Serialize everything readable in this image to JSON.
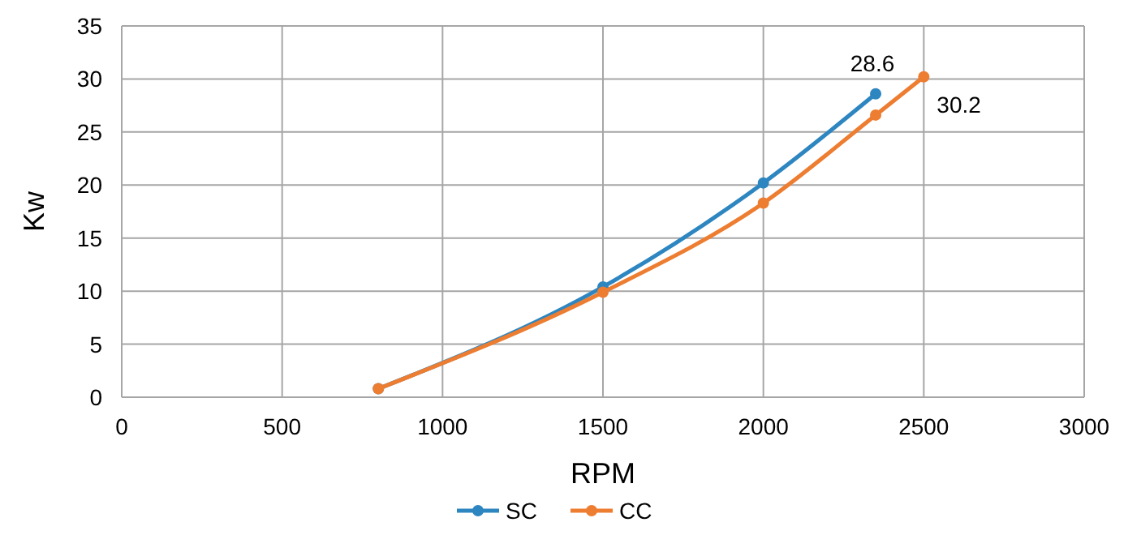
{
  "chart_data": {
    "type": "line",
    "xlabel": "RPM",
    "ylabel": "Kw",
    "x": [
      800,
      1500,
      2000,
      2350
    ],
    "series": [
      {
        "name": "SC",
        "color": "#2e86c1",
        "values": [
          0.8,
          10.4,
          20.2,
          28.6
        ]
      },
      {
        "name": "CC",
        "color": "#ed7d31",
        "x": [
          800,
          1500,
          2000,
          2350,
          2500
        ],
        "values": [
          0.8,
          9.9,
          18.3,
          26.6,
          30.2
        ]
      }
    ],
    "xlim": [
      0,
      3000
    ],
    "xticks": [
      0,
      500,
      1000,
      1500,
      2000,
      2500,
      3000
    ],
    "ylim": [
      0,
      35
    ],
    "yticks": [
      0,
      5,
      10,
      15,
      20,
      25,
      30,
      35
    ],
    "grid": true,
    "legend": "bottom",
    "marker": "circle",
    "line_style": "solid",
    "annotations": [
      {
        "text": "28.6",
        "x": 2350,
        "y": 28.6
      },
      {
        "text": "30.2",
        "x": 2500,
        "y": 30.2
      }
    ]
  }
}
